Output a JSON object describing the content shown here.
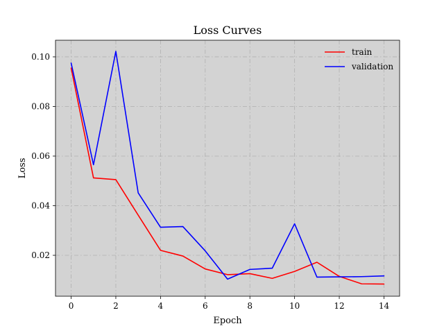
{
  "chart_data": {
    "type": "line",
    "title": "Loss Curves",
    "xlabel": "Epoch",
    "ylabel": "Loss",
    "xlim": [
      -0.7,
      14.7
    ],
    "ylim": [
      0.0035,
      0.1067
    ],
    "xticks": [
      0,
      2,
      4,
      6,
      8,
      10,
      12,
      14
    ],
    "yticks": [
      0.02,
      0.04,
      0.06,
      0.08,
      0.1
    ],
    "xtick_labels": [
      "0",
      "2",
      "4",
      "6",
      "8",
      "10",
      "12",
      "14"
    ],
    "ytick_labels": [
      "0.02",
      "0.04",
      "0.06",
      "0.08",
      "0.10"
    ],
    "grid": true,
    "legend_position": "top-right",
    "background_color": "#d3d3d3",
    "x": [
      0,
      1,
      2,
      3,
      4,
      5,
      6,
      7,
      8,
      9,
      10,
      11,
      12,
      13,
      14
    ],
    "series": [
      {
        "name": "train",
        "color": "#ff0000",
        "values": [
          0.0955,
          0.0512,
          0.0505,
          0.0362,
          0.022,
          0.0197,
          0.0145,
          0.0122,
          0.0126,
          0.0107,
          0.0135,
          0.0172,
          0.0115,
          0.0085,
          0.0084
        ]
      },
      {
        "name": "validation",
        "color": "#0000ff",
        "values": [
          0.0975,
          0.0565,
          0.1022,
          0.0452,
          0.0313,
          0.0316,
          0.0218,
          0.0104,
          0.0143,
          0.0148,
          0.0327,
          0.0112,
          0.0113,
          0.0114,
          0.0117
        ]
      }
    ]
  }
}
